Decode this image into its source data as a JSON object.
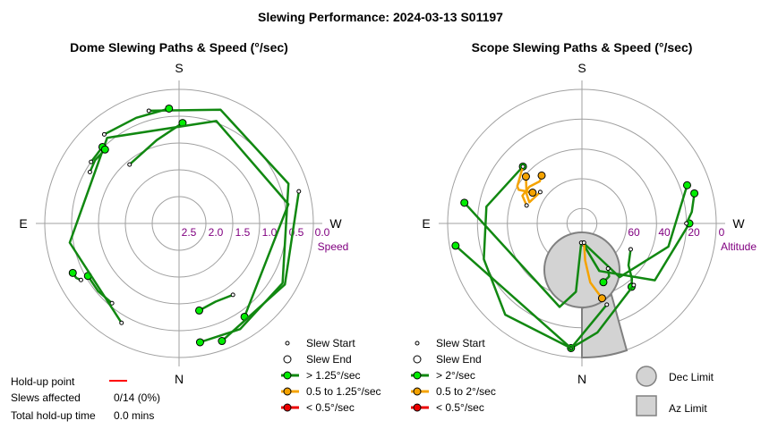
{
  "title": "Slewing Performance: 2024-03-13 S01197",
  "colors": {
    "fast_dome": "#00ee00",
    "fast_scope": "#00ee00",
    "medium": "#f5a300",
    "slow": "#ee0000",
    "path_green": "#118811",
    "path_orange": "#f5a300",
    "scale_label": "#800080",
    "grid": "#a0a0a0",
    "limit_fill": "#d3d3d3",
    "limit_stroke": "#808080",
    "holdup_line": "#ff0000"
  },
  "dome": {
    "title": "Dome Slewing Paths & Speed (°/sec)",
    "compass": {
      "S": "S",
      "N": "N",
      "E": "E",
      "W": "W"
    },
    "scale_ticks": [
      "2.5",
      "2.0",
      "1.5",
      "1.0",
      "0.5",
      "0.0"
    ],
    "scale_label": "Speed",
    "legend": [
      {
        "label": "Slew Start",
        "kind": "start"
      },
      {
        "label": "Slew End",
        "kind": "end"
      },
      {
        "label": "> 1.25°/sec",
        "kind": "fast"
      },
      {
        "label": "0.5 to 1.25°/sec",
        "kind": "medium"
      },
      {
        "label": "< 0.5°/sec",
        "kind": "slow"
      }
    ]
  },
  "scope": {
    "title": "Scope Slewing Paths & Speed (°/sec)",
    "compass": {
      "S": "S",
      "N": "N",
      "E": "E",
      "W": "W"
    },
    "scale_ticks": [
      "60",
      "40",
      "20",
      "0"
    ],
    "scale_label": "Altitude",
    "legend": [
      {
        "label": "Slew Start",
        "kind": "start"
      },
      {
        "label": "Slew End",
        "kind": "end"
      },
      {
        "label": "> 2°/sec",
        "kind": "fast"
      },
      {
        "label": "0.5 to 2°/sec",
        "kind": "medium"
      },
      {
        "label": "< 0.5°/sec",
        "kind": "slow"
      }
    ],
    "limits": [
      {
        "label": "Dec Limit",
        "kind": "circle"
      },
      {
        "label": "Az Limit",
        "kind": "square"
      }
    ]
  },
  "holdup": {
    "rows": [
      {
        "label": "Hold-up point",
        "value": ""
      },
      {
        "label": "Slews affected",
        "value": "0/14 (0%)"
      },
      {
        "label": "Total hold-up time",
        "value": "0.0 mins"
      }
    ]
  },
  "chart_data": [
    {
      "type": "scatter",
      "subtype": "polar",
      "title": "Dome Slewing Paths & Speed (°/sec)",
      "angular_axis": "azimuth",
      "orientation": "S top, N bottom, E left, W right",
      "radial_axis": {
        "label": "Speed",
        "ticks": [
          2.5,
          2.0,
          1.5,
          1.0,
          0.5,
          0.0
        ],
        "range": [
          3.0,
          0.0
        ]
      },
      "series": [
        {
          "name": "> 1.25°/sec",
          "paths": [
            [
              [
                -37,
                2.0
              ],
              [
                -25,
                1.93
              ],
              [
                -13,
                2.0
              ]
            ],
            [
              [
                40,
                2.33
              ],
              [
                50,
                2.36
              ],
              [
                60,
                2.35
              ]
            ],
            [
              [
                140,
                1.72
              ],
              [
                165,
                1.93
              ],
              [
                182,
                2.25
              ]
            ],
            [
              [
                165,
                2.61
              ],
              [
                200,
                2.71
              ],
              [
                250,
                2.6
              ],
              [
                300,
                2.67
              ],
              [
                330,
                2.73
              ],
              [
                350,
                2.7
              ]
            ],
            [
              [
                30,
                2.57
              ],
              [
                80,
                2.48
              ],
              [
                140,
                2.5
              ],
              [
                200,
                2.44
              ],
              [
                260,
                2.48
              ],
              [
                325,
                2.55
              ]
            ],
            [
              [
                255,
                2.77
              ],
              [
                300,
                2.73
              ],
              [
                340,
                2.8
              ]
            ],
            [
              [
                140,
                2.6
              ],
              [
                158,
                2.55
              ],
              [
                175,
                2.58
              ]
            ],
            [
              [
                125,
                2.4
              ],
              [
                130,
                2.4
              ],
              [
                135,
                2.42
              ]
            ],
            [
              [
                60,
                2.53
              ],
              [
                62,
                2.6
              ],
              [
                65,
                2.62
              ]
            ],
            [
              [
                120,
                2.3
              ],
              [
                127,
                2.35
              ],
              [
                135,
                2.34
              ]
            ]
          ]
        },
        {
          "name": "0.5 to 1.25°/sec",
          "paths": []
        },
        {
          "name": "< 0.5°/sec",
          "paths": []
        }
      ]
    },
    {
      "type": "scatter",
      "subtype": "polar",
      "title": "Scope Slewing Paths & Speed (°/sec)",
      "angular_axis": "azimuth",
      "orientation": "S top, N bottom, E left, W right",
      "radial_axis": {
        "label": "Altitude",
        "ticks": [
          60,
          40,
          20,
          0
        ],
        "range": [
          90,
          0
        ]
      },
      "limits": {
        "dec_limit": "circle",
        "az_limit": "wedge"
      },
      "series": [
        {
          "name": "> 2°/sec",
          "paths": [
            [
              [
                356,
                13
              ],
              [
                325,
                44
              ],
              [
                285,
                60
              ],
              [
                250,
                75
              ]
            ],
            [
              [
                356,
                14
              ],
              [
                340,
                34
              ],
              [
                308,
                62
              ],
              [
                270,
                72
              ]
            ],
            [
              [
                2,
                13
              ],
              [
                5,
                46
              ],
              [
                15,
                58
              ],
              [
                100,
                80
              ]
            ],
            [
              [
                298,
                37
              ],
              [
                312,
                42
              ],
              [
                318,
                50
              ],
              [
                322,
                54
              ]
            ],
            [
              [
                320,
                54
              ],
              [
                336,
                60
              ],
              [
                352,
                74
              ],
              [
                5,
                84
              ]
            ],
            [
              [
                5,
                84
              ],
              [
                40,
                80
              ],
              [
                70,
                70
              ],
              [
                100,
                65
              ],
              [
                134,
                55
              ]
            ],
            [
              [
                270,
                70
              ],
              [
                264,
                74
              ],
              [
                255,
                78
              ]
            ],
            [
              [
                330,
                35
              ],
              [
                333,
                40
              ],
              [
                340,
                42
              ]
            ],
            [
              [
                343,
                57
              ],
              [
                5,
                84
              ],
              [
                80,
                86
              ]
            ]
          ]
        },
        {
          "name": "0.5 to 2°/sec",
          "paths": [
            [
              [
                354,
                13
              ],
              [
                355,
                25
              ],
              [
                352,
                40
              ],
              [
                345,
                52
              ]
            ],
            [
              [
                127,
                35
              ],
              [
                112,
                38
              ],
              [
                118,
                42
              ],
              [
                130,
                49
              ]
            ],
            [
              [
                134,
                55
              ],
              [
                120,
                50
              ],
              [
                118,
                48
              ],
              [
                122,
                39
              ]
            ],
            [
              [
                108,
                39
              ],
              [
                115,
                44
              ],
              [
                125,
                43
              ],
              [
                135,
                40
              ],
              [
                140,
                42
              ]
            ]
          ]
        },
        {
          "name": "< 0.5°/sec",
          "paths": []
        }
      ]
    }
  ]
}
